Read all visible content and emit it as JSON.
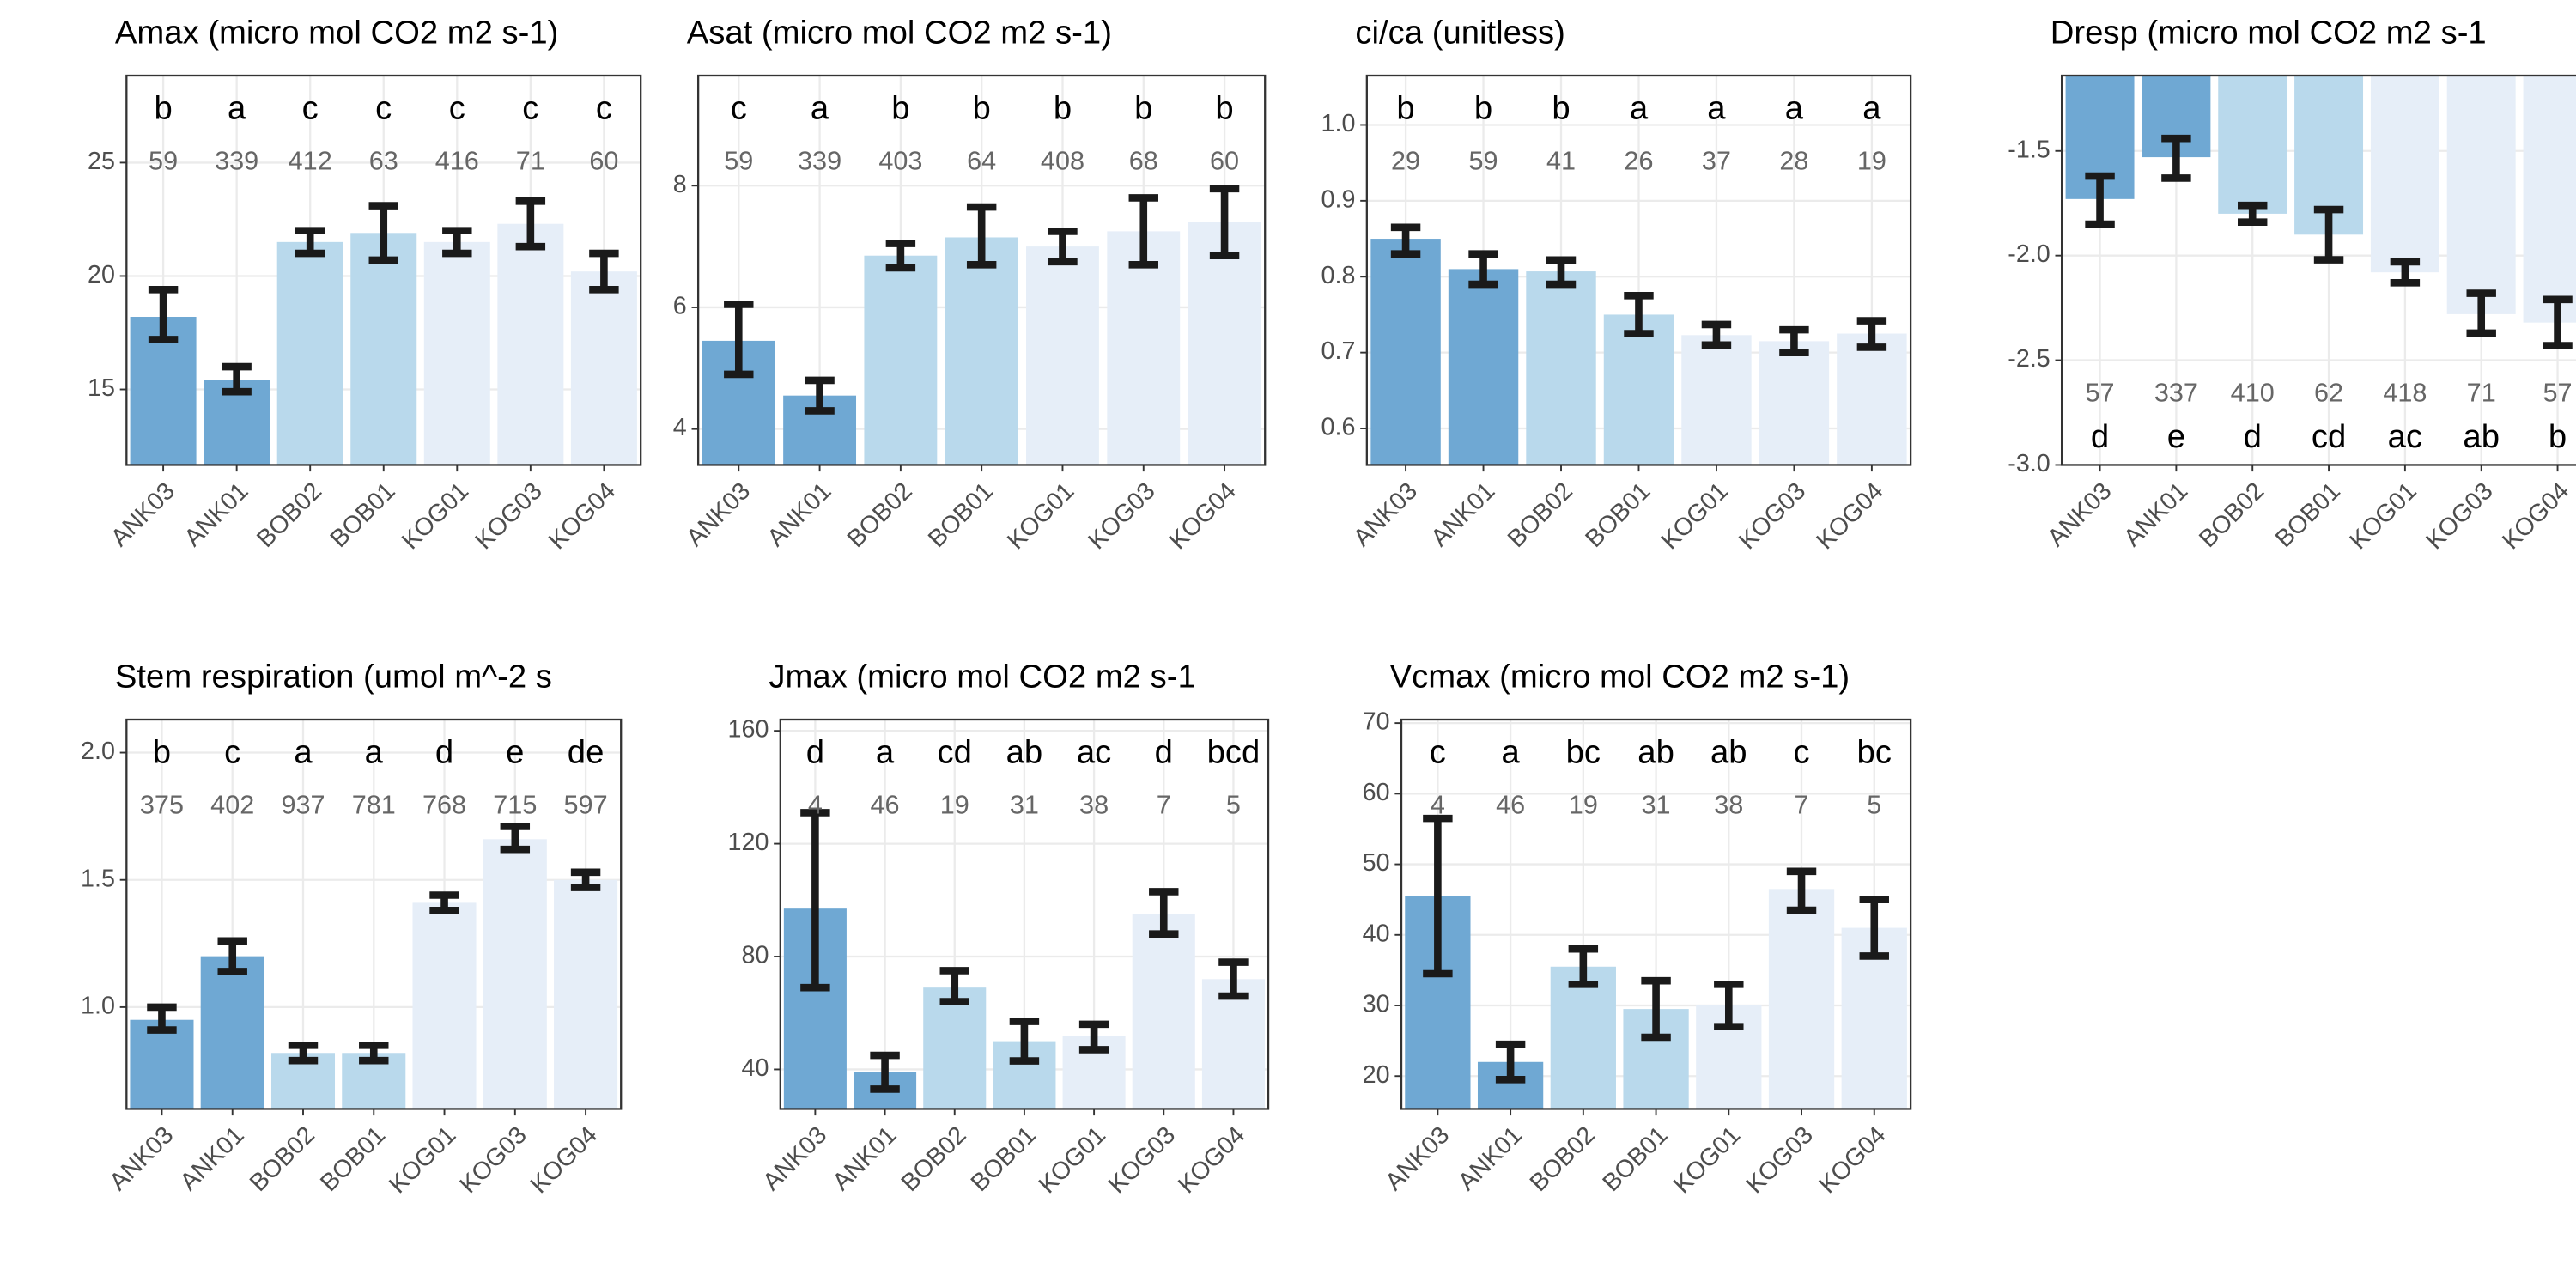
{
  "chart_data": [
    {
      "type": "bar",
      "title": "Amax (micro mol CO2 m2 s-1)",
      "categories": [
        "ANK03",
        "ANK01",
        "BOB02",
        "BOB01",
        "KOG01",
        "KOG03",
        "KOG04"
      ],
      "values": [
        18.2,
        15.4,
        21.5,
        21.9,
        21.5,
        22.3,
        20.2
      ],
      "lower": [
        17.2,
        14.9,
        21.0,
        20.7,
        21.0,
        21.3,
        19.4
      ],
      "upper": [
        19.4,
        16.0,
        22.0,
        23.1,
        22.0,
        23.3,
        21.0
      ],
      "letters": [
        "b",
        "a",
        "c",
        "c",
        "c",
        "c",
        "c"
      ],
      "n": [
        59,
        339,
        412,
        63,
        416,
        71,
        60
      ],
      "annotation_position": "top",
      "colors": [
        "#6fa8d3",
        "#6fa8d3",
        "#b9d9ec",
        "#b9d9ec",
        "#e6eef8",
        "#e6eef8",
        "#e6eef8"
      ],
      "ylim": [
        11.67,
        28.84
      ],
      "yticks": [
        15,
        20,
        25
      ],
      "grid": true
    },
    {
      "type": "bar",
      "title": "Asat (micro mol CO2 m2 s-1)",
      "categories": [
        "ANK03",
        "ANK01",
        "BOB02",
        "BOB01",
        "KOG01",
        "KOG03",
        "KOG04"
      ],
      "values": [
        5.45,
        4.55,
        6.85,
        7.15,
        7.0,
        7.25,
        7.4
      ],
      "lower": [
        4.9,
        4.3,
        6.65,
        6.7,
        6.75,
        6.7,
        6.85
      ],
      "upper": [
        6.05,
        4.8,
        7.05,
        7.65,
        7.25,
        7.8,
        7.95
      ],
      "letters": [
        "c",
        "a",
        "b",
        "b",
        "b",
        "b",
        "b"
      ],
      "n": [
        59,
        339,
        403,
        64,
        408,
        68,
        60
      ],
      "annotation_position": "top",
      "colors": [
        "#6fa8d3",
        "#6fa8d3",
        "#b9d9ec",
        "#b9d9ec",
        "#e6eef8",
        "#e6eef8",
        "#e6eef8"
      ],
      "ylim": [
        3.41,
        9.81
      ],
      "yticks": [
        4,
        6,
        8
      ],
      "grid": true
    },
    {
      "type": "bar",
      "title": "ci/ca (unitless)",
      "categories": [
        "ANK03",
        "ANK01",
        "BOB02",
        "BOB01",
        "KOG01",
        "KOG03",
        "KOG04"
      ],
      "values": [
        0.85,
        0.81,
        0.807,
        0.75,
        0.723,
        0.715,
        0.725
      ],
      "lower": [
        0.83,
        0.79,
        0.79,
        0.725,
        0.71,
        0.7,
        0.707
      ],
      "upper": [
        0.865,
        0.83,
        0.822,
        0.775,
        0.737,
        0.73,
        0.742
      ],
      "letters": [
        "b",
        "b",
        "b",
        "a",
        "a",
        "a",
        "a"
      ],
      "n": [
        29,
        59,
        41,
        26,
        37,
        28,
        19
      ],
      "annotation_position": "top",
      "colors": [
        "#6fa8d3",
        "#6fa8d3",
        "#b9d9ec",
        "#b9d9ec",
        "#e6eef8",
        "#e6eef8",
        "#e6eef8"
      ],
      "ylim": [
        0.552,
        1.065
      ],
      "yticks": [
        0.6,
        0.7,
        0.8,
        0.9,
        {
          "value": 1.0,
          "label": "1.0"
        }
      ],
      "grid": true
    },
    {
      "type": "bar",
      "title": "Dresp (micro mol CO2 m2 s-1",
      "categories": [
        "ANK03",
        "ANK01",
        "BOB02",
        "BOB01",
        "KOG01",
        "KOG03",
        "KOG04"
      ],
      "values": [
        -1.73,
        -1.53,
        -1.8,
        -1.9,
        -2.08,
        -2.28,
        -2.32
      ],
      "lower": [
        -1.85,
        -1.63,
        -1.84,
        -2.02,
        -2.13,
        -2.37,
        -2.43
      ],
      "upper": [
        -1.62,
        -1.44,
        -1.76,
        -1.78,
        -2.03,
        -2.18,
        -2.21
      ],
      "letters": [
        "d",
        "e",
        "d",
        "cd",
        "ac",
        "ab",
        "b"
      ],
      "n": [
        57,
        337,
        410,
        62,
        418,
        71,
        57
      ],
      "annotation_position": "bottom",
      "colors": [
        "#6fa8d3",
        "#6fa8d3",
        "#b9d9ec",
        "#b9d9ec",
        "#e6eef8",
        "#e6eef8",
        "#e6eef8"
      ],
      "ylim": [
        -3.0,
        -1.14
      ],
      "yticks": [
        {
          "value": -3.0,
          "label": "-3.0"
        },
        -2.5,
        {
          "value": -2.0,
          "label": "-2.0"
        },
        -1.5
      ],
      "grid": true
    },
    {
      "type": "bar",
      "title": "Stem respiration (umol m^-2 s",
      "categories": [
        "ANK03",
        "ANK01",
        "BOB02",
        "BOB01",
        "KOG01",
        "KOG03",
        "KOG04"
      ],
      "values": [
        0.95,
        1.2,
        0.82,
        0.82,
        1.41,
        1.66,
        1.5
      ],
      "lower": [
        0.91,
        1.14,
        0.79,
        0.79,
        1.38,
        1.62,
        1.47
      ],
      "upper": [
        1.0,
        1.26,
        0.85,
        0.85,
        1.44,
        1.71,
        1.53
      ],
      "letters": [
        "b",
        "c",
        "a",
        "a",
        "d",
        "e",
        "de"
      ],
      "n": [
        375,
        402,
        937,
        781,
        768,
        715,
        597
      ],
      "annotation_position": "top",
      "colors": [
        "#6fa8d3",
        "#6fa8d3",
        "#b9d9ec",
        "#b9d9ec",
        "#e6eef8",
        "#e6eef8",
        "#e6eef8"
      ],
      "ylim": [
        0.6,
        2.13
      ],
      "yticks": [
        {
          "value": 1.0,
          "label": "1.0"
        },
        1.5,
        {
          "value": 2.0,
          "label": "2.0"
        }
      ],
      "grid": true
    },
    {
      "type": "bar",
      "title": "Jmax (micro mol CO2 m2 s-1",
      "categories": [
        "ANK03",
        "ANK01",
        "BOB02",
        "BOB01",
        "KOG01",
        "KOG03",
        "KOG04"
      ],
      "values": [
        97,
        39,
        69,
        50,
        52,
        95,
        72
      ],
      "lower": [
        69,
        33,
        64,
        43,
        47,
        88,
        66
      ],
      "upper": [
        131,
        45,
        75,
        57,
        56,
        103,
        78
      ],
      "letters": [
        "d",
        "a",
        "cd",
        "ab",
        "ac",
        "d",
        "bcd"
      ],
      "n": [
        4,
        46,
        19,
        31,
        38,
        7,
        5
      ],
      "annotation_position": "top",
      "colors": [
        "#6fa8d3",
        "#6fa8d3",
        "#b9d9ec",
        "#b9d9ec",
        "#e6eef8",
        "#e6eef8",
        "#e6eef8"
      ],
      "ylim": [
        26,
        164
      ],
      "yticks": [
        40,
        80,
        120,
        160
      ],
      "grid": true
    },
    {
      "type": "bar",
      "title": "Vcmax (micro mol CO2 m2 s-1)",
      "categories": [
        "ANK03",
        "ANK01",
        "BOB02",
        "BOB01",
        "KOG01",
        "KOG03",
        "KOG04"
      ],
      "values": [
        45.5,
        22,
        35.5,
        29.5,
        30,
        46.5,
        41
      ],
      "lower": [
        34.5,
        19.5,
        33,
        25.5,
        27,
        43.5,
        37
      ],
      "upper": [
        56.5,
        24.5,
        38,
        33.5,
        33,
        49,
        45
      ],
      "letters": [
        "c",
        "a",
        "bc",
        "ab",
        "ab",
        "c",
        "bc"
      ],
      "n": [
        4,
        46,
        19,
        31,
        38,
        7,
        5
      ],
      "annotation_position": "top",
      "colors": [
        "#6fa8d3",
        "#6fa8d3",
        "#b9d9ec",
        "#b9d9ec",
        "#e6eef8",
        "#e6eef8",
        "#e6eef8"
      ],
      "ylim": [
        15.35,
        70.5
      ],
      "yticks": [
        20,
        30,
        40,
        50,
        60,
        70
      ],
      "grid": true
    }
  ]
}
